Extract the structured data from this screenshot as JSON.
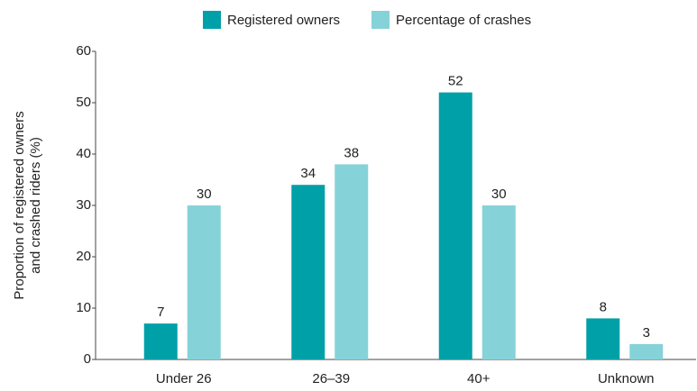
{
  "chart_data": {
    "type": "bar",
    "categories": [
      "Under 26",
      "26–39",
      "40+",
      "Unknown"
    ],
    "series": [
      {
        "name": "Registered owners",
        "color": "#00a0a8",
        "values": [
          7,
          34,
          52,
          8
        ]
      },
      {
        "name": "Percentage of crashes",
        "color": "#86d2d9",
        "values": [
          30,
          38,
          30,
          3
        ]
      }
    ],
    "ylabel": [
      "Proportion of registered owners",
      "and crashed riders (%)"
    ],
    "ylim": [
      0,
      60
    ],
    "yticks": [
      0,
      10,
      20,
      30,
      40,
      50,
      60
    ],
    "legend": "top"
  }
}
